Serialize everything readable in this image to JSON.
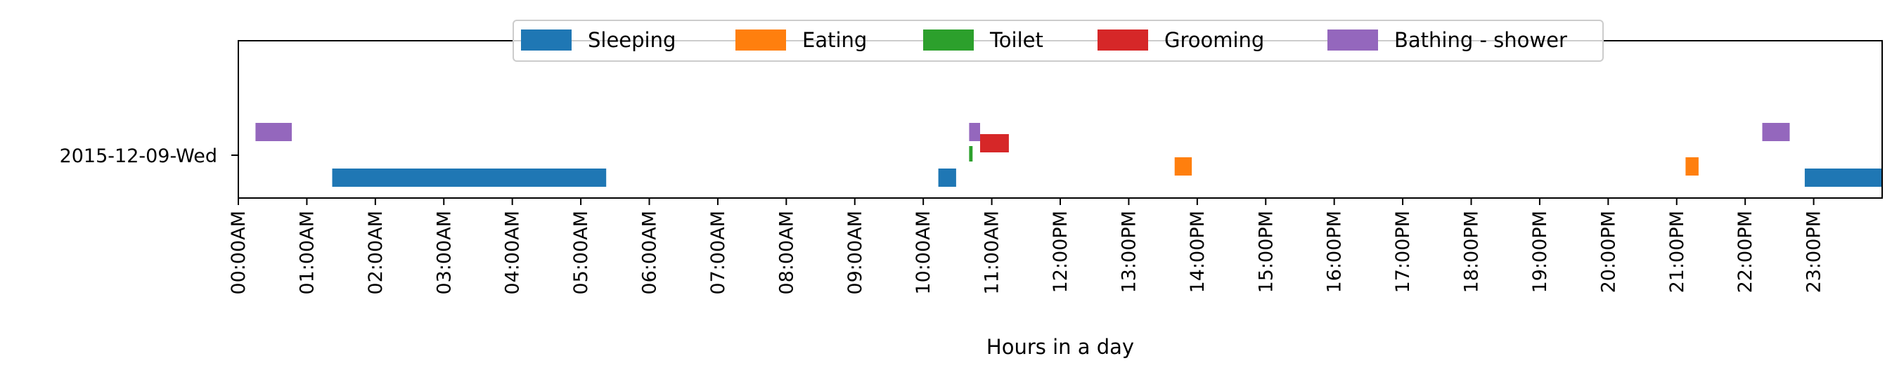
{
  "chart_data": {
    "type": "timeline",
    "title": "",
    "xlabel": "Hours in a day",
    "ylabel": "",
    "x_unit": "hours",
    "xlim": [
      0,
      24
    ],
    "x_tick_labels": [
      "00:00AM",
      "01:00AM",
      "02:00AM",
      "03:00AM",
      "04:00AM",
      "05:00AM",
      "06:00AM",
      "07:00AM",
      "08:00AM",
      "09:00AM",
      "10:00AM",
      "11:00AM",
      "12:00PM",
      "13:00PM",
      "14:00PM",
      "15:00PM",
      "16:00PM",
      "17:00PM",
      "18:00PM",
      "19:00PM",
      "20:00PM",
      "21:00PM",
      "22:00PM",
      "23:00PM"
    ],
    "y_categories": [
      "2015-12-09-Wed"
    ],
    "grid": false,
    "legend_position": "top-center",
    "series": [
      {
        "name": "Sleeping",
        "color": "#1f77b4",
        "intervals": [
          {
            "start": 1.37,
            "end": 5.37
          },
          {
            "start": 10.22,
            "end": 10.48
          },
          {
            "start": 22.87,
            "end": 24.0
          }
        ]
      },
      {
        "name": "Eating",
        "color": "#ff7f0e",
        "intervals": [
          {
            "start": 13.67,
            "end": 13.92
          },
          {
            "start": 21.13,
            "end": 21.32
          }
        ]
      },
      {
        "name": "Toilet",
        "color": "#2ca02c",
        "intervals": [
          {
            "start": 10.67,
            "end": 10.72
          }
        ]
      },
      {
        "name": "Grooming",
        "color": "#d62728",
        "intervals": [
          {
            "start": 10.83,
            "end": 11.25
          }
        ]
      },
      {
        "name": "Bathing - shower",
        "color": "#9467bd",
        "intervals": [
          {
            "start": 0.25,
            "end": 0.78
          },
          {
            "start": 10.67,
            "end": 10.83
          },
          {
            "start": 22.25,
            "end": 22.65
          }
        ]
      }
    ]
  }
}
